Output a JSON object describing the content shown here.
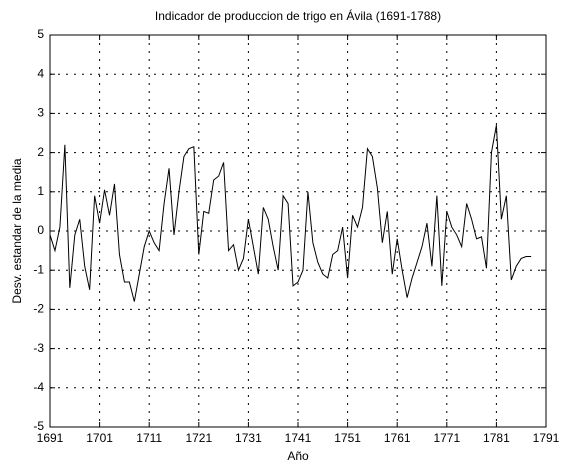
{
  "chart_data": {
    "type": "line",
    "title": "Indicador de produccion de trigo en Ávila (1691-1788)",
    "xlabel": "Año",
    "ylabel": "Desv. estandar de la media",
    "x": [
      1691,
      1692,
      1693,
      1694,
      1695,
      1696,
      1697,
      1698,
      1699,
      1700,
      1701,
      1702,
      1703,
      1704,
      1705,
      1706,
      1707,
      1708,
      1709,
      1710,
      1711,
      1712,
      1713,
      1714,
      1715,
      1716,
      1717,
      1718,
      1719,
      1720,
      1721,
      1722,
      1723,
      1724,
      1725,
      1726,
      1727,
      1728,
      1729,
      1730,
      1731,
      1732,
      1733,
      1734,
      1735,
      1736,
      1737,
      1738,
      1739,
      1740,
      1741,
      1742,
      1743,
      1744,
      1745,
      1746,
      1747,
      1748,
      1749,
      1750,
      1751,
      1752,
      1753,
      1754,
      1755,
      1756,
      1757,
      1758,
      1759,
      1760,
      1761,
      1762,
      1763,
      1764,
      1765,
      1766,
      1767,
      1768,
      1769,
      1770,
      1771,
      1772,
      1773,
      1774,
      1775,
      1776,
      1777,
      1778,
      1779,
      1780,
      1781,
      1782,
      1783,
      1784,
      1785,
      1786,
      1787,
      1788
    ],
    "series": [
      {
        "name": "Indicador",
        "color": "#000000",
        "values": [
          -0.1,
          -0.5,
          0.1,
          2.2,
          -1.45,
          -0.1,
          0.3,
          -0.9,
          -1.5,
          0.9,
          0.2,
          1.05,
          0.4,
          1.2,
          -0.6,
          -1.3,
          -1.3,
          -1.8,
          -1.1,
          -0.4,
          0.0,
          -0.3,
          -0.5,
          0.7,
          1.6,
          -0.1,
          1.0,
          1.9,
          2.1,
          2.15,
          -0.6,
          0.5,
          0.45,
          1.3,
          1.4,
          1.75,
          -0.5,
          -0.35,
          -1.0,
          -0.7,
          0.3,
          -0.4,
          -1.1,
          0.6,
          0.3,
          -0.4,
          -1.0,
          0.9,
          0.7,
          -1.4,
          -1.3,
          -1.0,
          1.0,
          -0.3,
          -0.8,
          -1.1,
          -1.2,
          -0.6,
          -0.5,
          0.1,
          -1.2,
          0.4,
          0.1,
          0.6,
          2.1,
          1.9,
          1.1,
          -0.3,
          0.5,
          -1.1,
          -0.2,
          -1.0,
          -1.7,
          -1.2,
          -0.8,
          -0.4,
          0.2,
          -0.9,
          0.9,
          -1.4,
          0.5,
          0.1,
          -0.1,
          -0.4,
          0.7,
          0.3,
          -0.2,
          -0.15,
          -0.95,
          2.0,
          2.7,
          0.3,
          0.9,
          -1.25,
          -0.9,
          -0.7,
          -0.65,
          -0.65
        ]
      }
    ],
    "xlim": [
      1691,
      1791
    ],
    "xticks": [
      1691,
      1701,
      1711,
      1721,
      1731,
      1741,
      1751,
      1761,
      1771,
      1781,
      1791
    ],
    "ylim": [
      -5,
      5
    ],
    "yticks": [
      -5,
      -4,
      -3,
      -2,
      -1,
      0,
      1,
      2,
      3,
      4,
      5
    ],
    "grid": true
  }
}
